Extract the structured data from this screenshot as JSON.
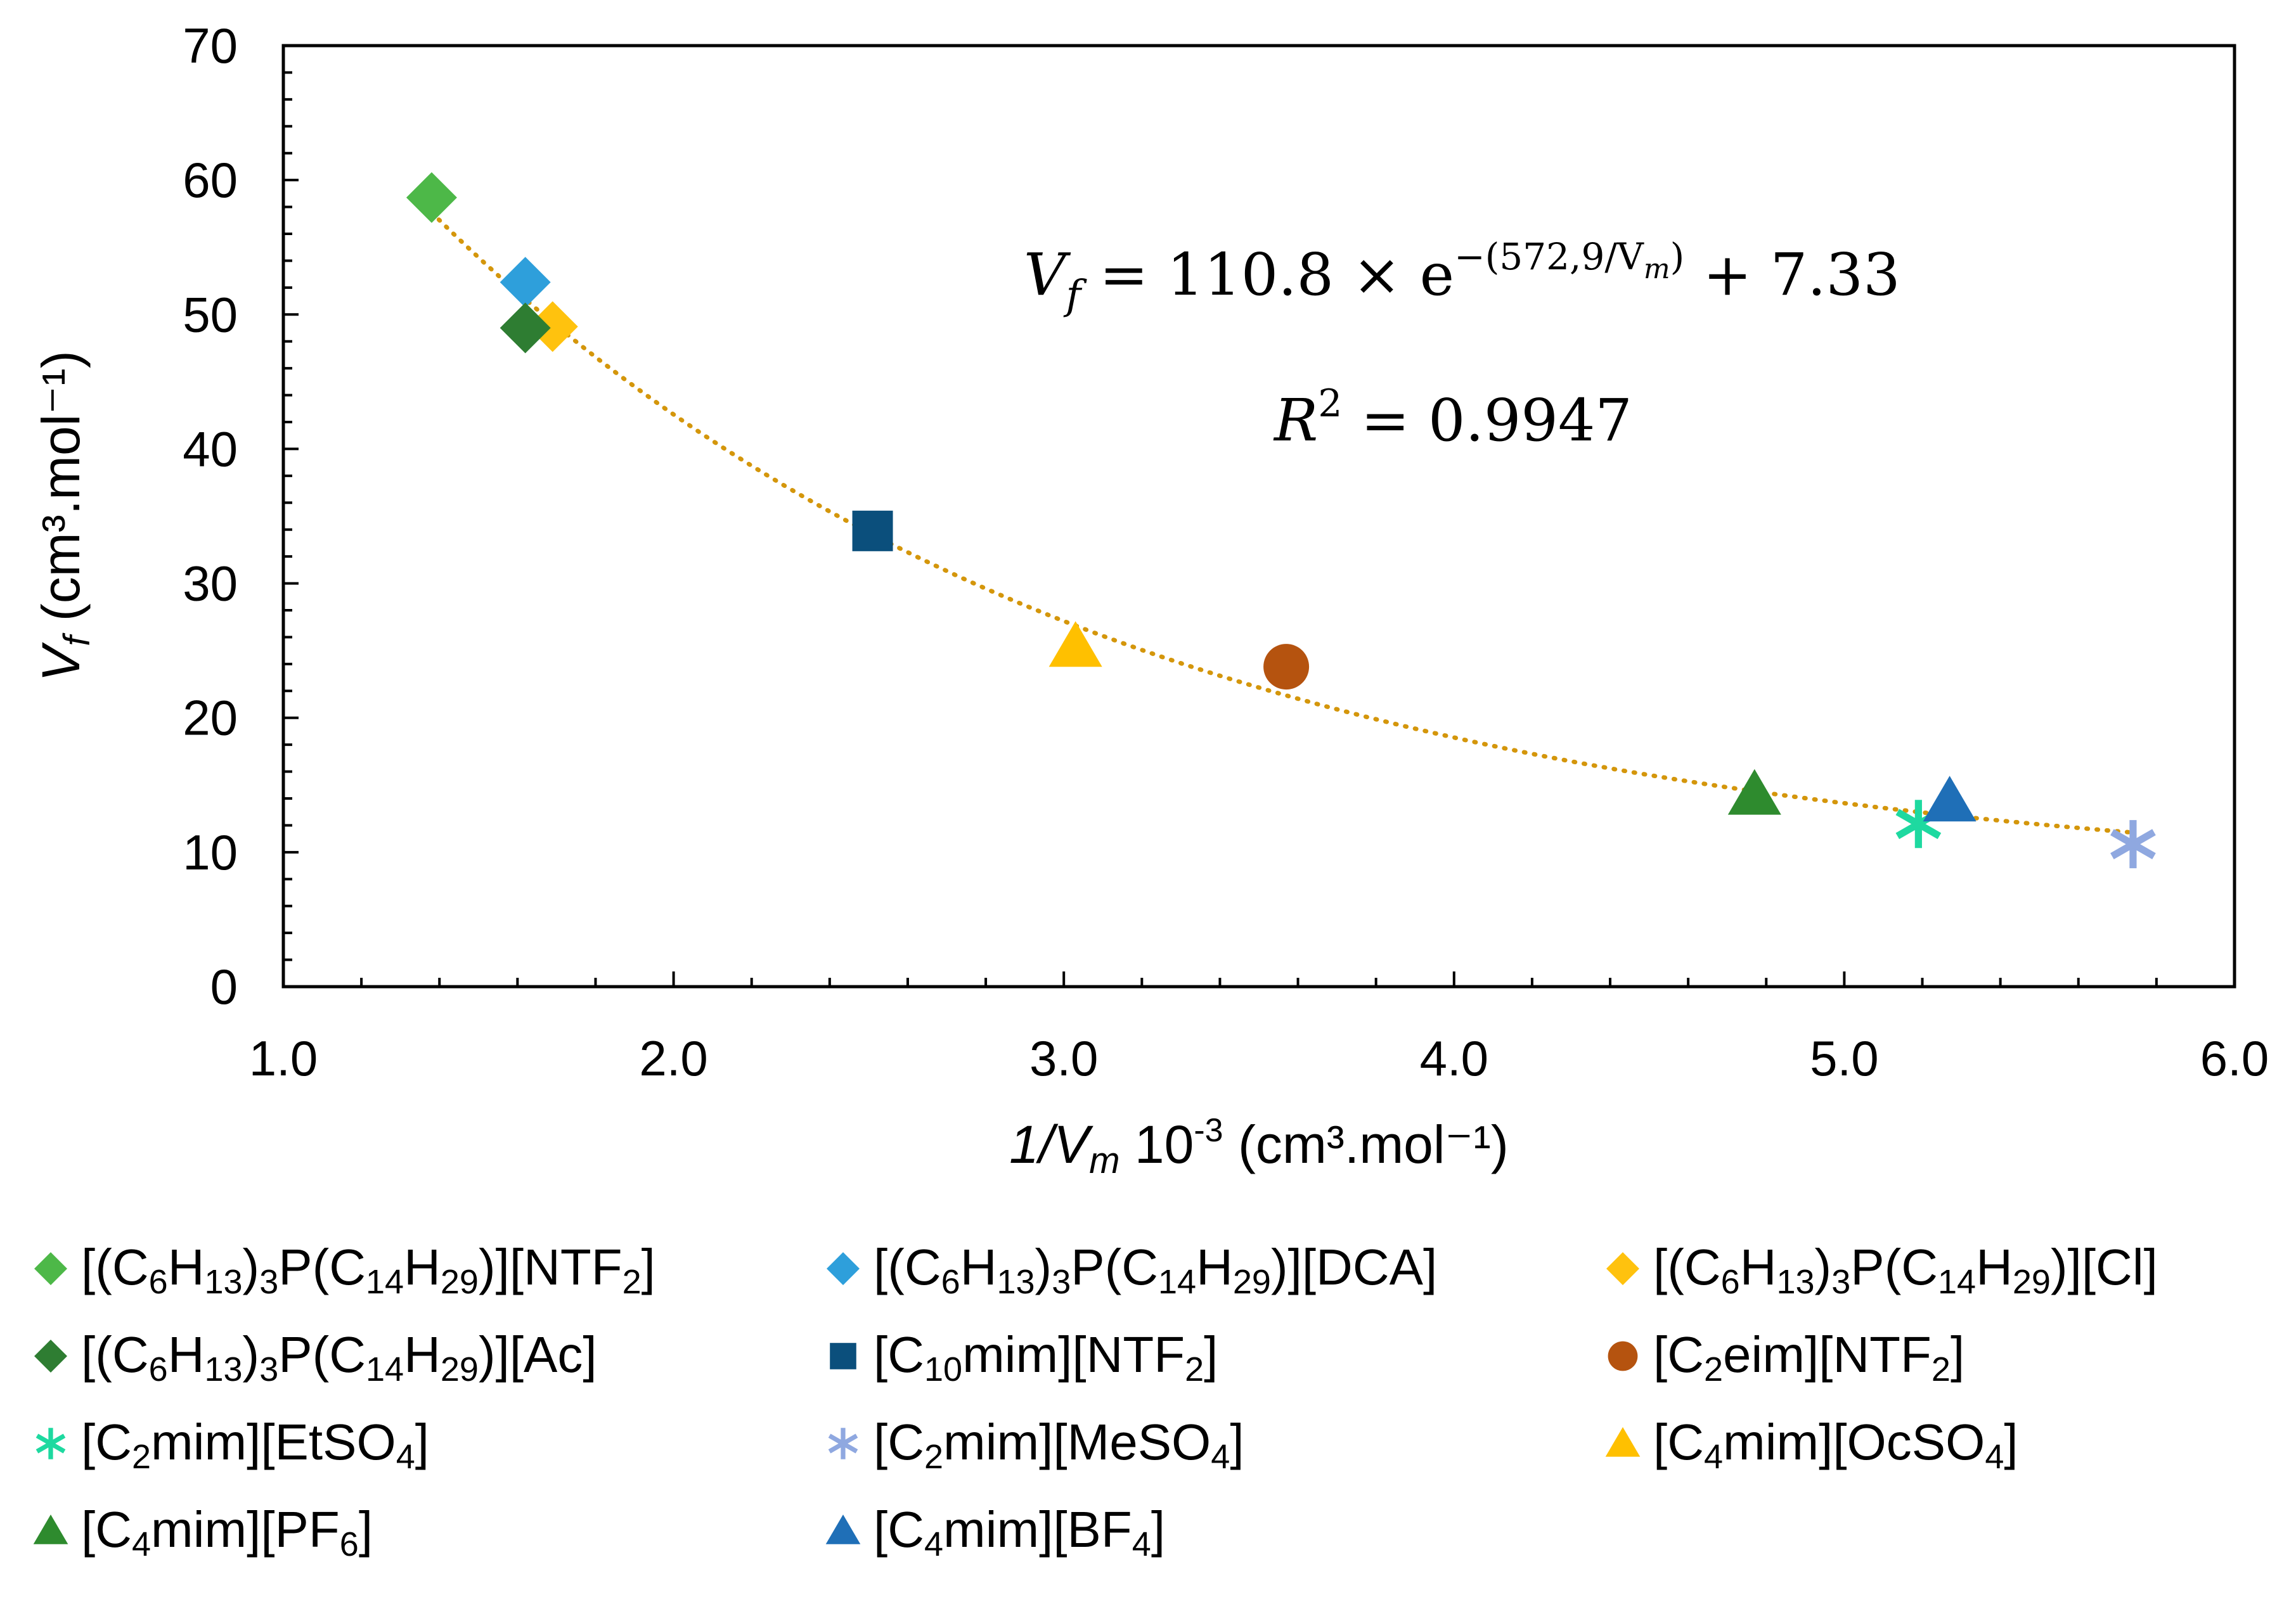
{
  "chart_data": {
    "type": "scatter",
    "title": "",
    "xlabel": "1/V_m 10-3 (cm³.mol⁻¹)",
    "xlabel_parts": {
      "var": "1/V",
      "sub": "m",
      "rest": " 10",
      "sup": "-3",
      "unit": " (cm³.mol⁻¹)"
    },
    "ylabel_parts": {
      "var": "V",
      "sub": "f",
      "unit": " (cm³.mol⁻¹)"
    },
    "xlim": [
      1.0,
      6.0
    ],
    "ylim": [
      0,
      70
    ],
    "x_ticks": [
      "1.0",
      "2.0",
      "3.0",
      "4.0",
      "5.0",
      "6.0"
    ],
    "x_tick_values": [
      1.0,
      2.0,
      3.0,
      4.0,
      5.0,
      6.0
    ],
    "y_ticks": [
      "0",
      "10",
      "20",
      "30",
      "40",
      "50",
      "60",
      "70"
    ],
    "y_tick_values": [
      0,
      10,
      20,
      30,
      40,
      50,
      60,
      70
    ],
    "grid": false,
    "fit": {
      "type": "exponential",
      "a": 110.8,
      "b": 572.9,
      "c": 7.33,
      "color": "#D4960B",
      "style": "dotted",
      "x_range": [
        1.38,
        5.75
      ],
      "equation_lhs": "V",
      "equation_lhs_sub": "f",
      "equation_mid": " = 110.8 × e",
      "equation_exp": "−(572,9/V",
      "equation_exp_sub": "m",
      "equation_exp_end": ")",
      "equation_tail": " + 7.33",
      "r2_label": "R",
      "r2_sup": "2",
      "r2_value": " = 0.9947"
    },
    "series": [
      {
        "name": "[(C6H13)3P(C14H29)][NTF2]",
        "label_parts": [
          "[(C",
          "6",
          "H",
          "13",
          ")",
          "3",
          "P(C",
          "14",
          "H",
          "29",
          ")][NTF",
          "2",
          "]"
        ],
        "marker": "diamond",
        "color": "#4DB848",
        "x": 1.38,
        "y": 58.7
      },
      {
        "name": "[(C6H13)3P(C14H29)][DCA]",
        "label_parts": [
          "[(C",
          "6",
          "H",
          "13",
          ")",
          "3",
          "P(C",
          "14",
          "H",
          "29",
          ")][DCA]"
        ],
        "marker": "diamond",
        "color": "#2E9FDB",
        "x": 1.62,
        "y": 52.4
      },
      {
        "name": "[(C6H13)3P(C14H29)][Cl]",
        "label_parts": [
          "[(C",
          "6",
          "H",
          "13",
          ")",
          "3",
          "P(C",
          "14",
          "H",
          "29",
          ")][Cl]"
        ],
        "marker": "diamond",
        "color": "#FFC20E",
        "x": 1.69,
        "y": 49.1
      },
      {
        "name": "[(C6H13)3P(C14H29)][Ac]",
        "label_parts": [
          "[(C",
          "6",
          "H",
          "13",
          ")",
          "3",
          "P(C",
          "14",
          "H",
          "29",
          ")][Ac]"
        ],
        "marker": "diamond",
        "color": "#2E7D32",
        "x": 1.62,
        "y": 49.0
      },
      {
        "name": "[C10mim][NTF2]",
        "label_parts": [
          "[C",
          "10",
          "mim][NTF",
          "2",
          "]"
        ],
        "marker": "square",
        "color": "#0B4F7C",
        "x": 2.51,
        "y": 33.9
      },
      {
        "name": "[C2eim][NTF2]",
        "label_parts": [
          "[C",
          "2",
          "eim][NTF",
          "2",
          "]"
        ],
        "marker": "circle",
        "color": "#B5530F",
        "x": 3.57,
        "y": 23.8
      },
      {
        "name": "[C2mim][EtSO4]",
        "label_parts": [
          "[C",
          "2",
          "mim][EtSO",
          "4",
          "]"
        ],
        "marker": "asterisk",
        "color": "#1ED9A0",
        "x": 5.19,
        "y": 12.1
      },
      {
        "name": "[C2mim][MeSO4]",
        "label_parts": [
          "[C",
          "2",
          "mim][MeSO",
          "4",
          "]"
        ],
        "marker": "asterisk",
        "color": "#8FA8E0",
        "x": 5.74,
        "y": 10.6
      },
      {
        "name": "[C4mim][OcSO4]",
        "label_parts": [
          "[C",
          "4",
          "mim][OcSO",
          "4",
          "]"
        ],
        "marker": "triangle",
        "color": "#FFC000",
        "x": 3.03,
        "y": 25.3
      },
      {
        "name": "[C4mim][PF6]",
        "label_parts": [
          "[C",
          "4",
          "mim][PF",
          "6",
          "]"
        ],
        "marker": "triangle",
        "color": "#2E8B2E",
        "x": 4.77,
        "y": 14.3
      },
      {
        "name": "[C4mim][BF4]",
        "label_parts": [
          "[C",
          "4",
          "mim][BF",
          "4",
          "]"
        ],
        "marker": "triangle",
        "color": "#1F6FB7",
        "x": 5.27,
        "y": 13.8
      }
    ]
  }
}
